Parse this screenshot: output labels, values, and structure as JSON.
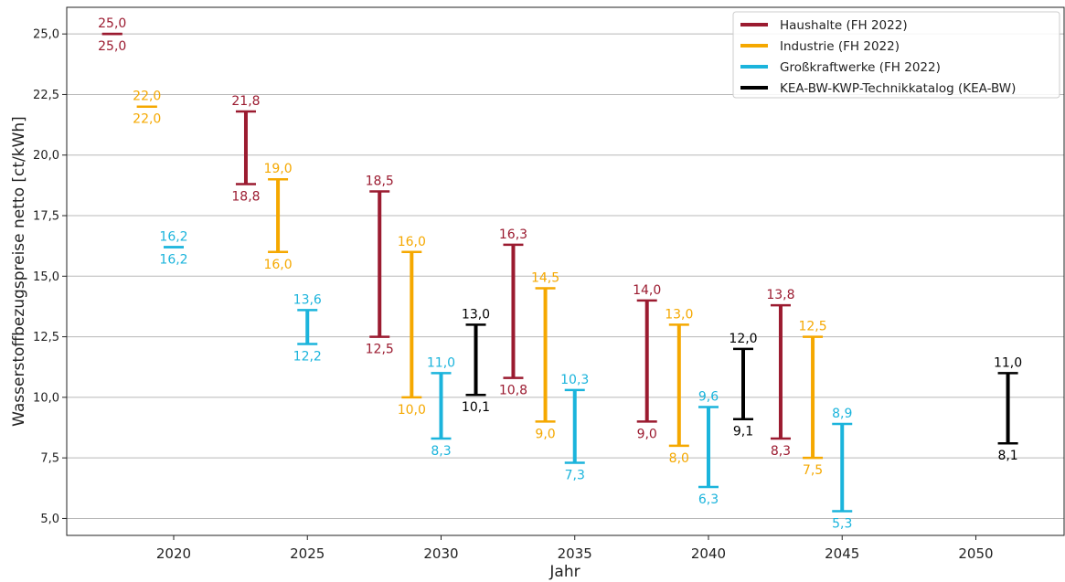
{
  "chart_data": {
    "type": "range",
    "xlabel": "Jahr",
    "ylabel": "Wasserstoffbezugspreise netto [ct/kWh]",
    "xlim": [
      2016.0,
      2053.3
    ],
    "ylim": [
      4.3,
      26.1
    ],
    "x_ticks": [
      2020,
      2025,
      2030,
      2035,
      2040,
      2045,
      2050
    ],
    "y_ticks": [
      5.0,
      7.5,
      10.0,
      12.5,
      15.0,
      17.5,
      20.0,
      22.5,
      25.0
    ],
    "x_tick_labels": [
      "2020",
      "2025",
      "2030",
      "2035",
      "2040",
      "2045",
      "2050"
    ],
    "y_tick_labels": [
      "5,0",
      "7,5",
      "10,0",
      "12,5",
      "15,0",
      "17,5",
      "20,0",
      "22,5",
      "25,0"
    ],
    "grid": "horizontal",
    "legend_position": "top-right",
    "series": [
      {
        "name": "Haushalte (FH 2022)",
        "color": "#9B1B30",
        "points": [
          {
            "x": 2017.7,
            "low": 25.0,
            "high": 25.0,
            "low_label": "25,0",
            "high_label": "25,0"
          },
          {
            "x": 2022.7,
            "low": 18.8,
            "high": 21.8,
            "low_label": "18,8",
            "high_label": "21,8"
          },
          {
            "x": 2027.7,
            "low": 12.5,
            "high": 18.5,
            "low_label": "12,5",
            "high_label": "18,5"
          },
          {
            "x": 2032.7,
            "low": 10.8,
            "high": 16.3,
            "low_label": "10,8",
            "high_label": "16,3"
          },
          {
            "x": 2037.7,
            "low": 9.0,
            "high": 14.0,
            "low_label": "9,0",
            "high_label": "14,0"
          },
          {
            "x": 2042.7,
            "low": 8.3,
            "high": 13.8,
            "low_label": "8,3",
            "high_label": "13,8"
          }
        ]
      },
      {
        "name": "Industrie (FH 2022)",
        "color": "#F5A800",
        "points": [
          {
            "x": 2019.0,
            "low": 22.0,
            "high": 22.0,
            "low_label": "22,0",
            "high_label": "22,0"
          },
          {
            "x": 2023.9,
            "low": 16.0,
            "high": 19.0,
            "low_label": "16,0",
            "high_label": "19,0"
          },
          {
            "x": 2028.9,
            "low": 10.0,
            "high": 16.0,
            "low_label": "10,0",
            "high_label": "16,0"
          },
          {
            "x": 2033.9,
            "low": 9.0,
            "high": 14.5,
            "low_label": "9,0",
            "high_label": "14,5"
          },
          {
            "x": 2038.9,
            "low": 8.0,
            "high": 13.0,
            "low_label": "8,0",
            "high_label": "13,0"
          },
          {
            "x": 2043.9,
            "low": 7.5,
            "high": 12.5,
            "low_label": "7,5",
            "high_label": "12,5"
          }
        ]
      },
      {
        "name": "Großkraftwerke (FH 2022)",
        "color": "#1BB4DC",
        "points": [
          {
            "x": 2020.0,
            "low": 16.2,
            "high": 16.2,
            "low_label": "16,2",
            "high_label": "16,2"
          },
          {
            "x": 2025.0,
            "low": 12.2,
            "high": 13.6,
            "low_label": "12,2",
            "high_label": "13,6"
          },
          {
            "x": 2030.0,
            "low": 8.3,
            "high": 11.0,
            "low_label": "8,3",
            "high_label": "11,0"
          },
          {
            "x": 2035.0,
            "low": 7.3,
            "high": 10.3,
            "low_label": "7,3",
            "high_label": "10,3"
          },
          {
            "x": 2040.0,
            "low": 6.3,
            "high": 9.6,
            "low_label": "6,3",
            "high_label": "9,6"
          },
          {
            "x": 2045.0,
            "low": 5.3,
            "high": 8.9,
            "low_label": "5,3",
            "high_label": "8,9"
          }
        ]
      },
      {
        "name": "KEA-BW-KWP-Technikkatalog (KEA-BW)",
        "color": "#000000",
        "points": [
          {
            "x": 2031.3,
            "low": 10.1,
            "high": 13.0,
            "low_label": "10,1",
            "high_label": "13,0"
          },
          {
            "x": 2041.3,
            "low": 9.1,
            "high": 12.0,
            "low_label": "9,1",
            "high_label": "12,0"
          },
          {
            "x": 2051.2,
            "low": 8.1,
            "high": 11.0,
            "low_label": "8,1",
            "high_label": "11,0"
          }
        ]
      }
    ]
  }
}
